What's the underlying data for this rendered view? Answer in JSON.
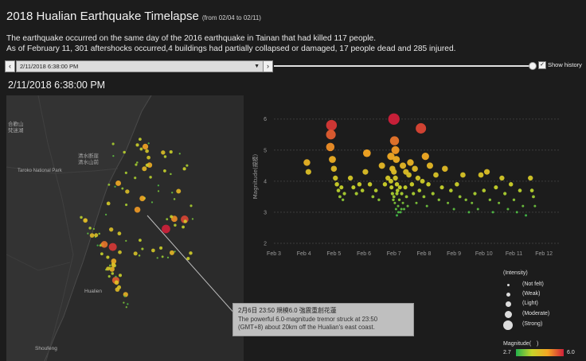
{
  "header": {
    "title": "2018 Hualian Earthquake Timelapse",
    "range": "(from 02/04 to 02/11)",
    "desc_line1": "The earthquake occurred on the same day of the 2016 earthquake in Tainan that had killed 117 people.",
    "desc_line2": "As of February 11, 301 aftershocks occurred,4 buildings had partially collapsed or damaged, 17 people dead and 285 injured."
  },
  "controls": {
    "prev_icon": "chevron-left-icon",
    "next_icon": "chevron-right-icon",
    "selected_date": "2/11/2018 6:38:00 PM",
    "show_history_label": "Show history",
    "show_history_checked": true,
    "progress": 1.0
  },
  "current_date": "2/11/2018 6:38:00 PM",
  "map": {
    "labels": {
      "hehuan": "合歡山",
      "hehuan_sub": "梵迷湖",
      "qingshui": "清水断崖",
      "qingshui_sub": "清水山前",
      "taroko": "Taroko National Park",
      "hualien": "Hualien",
      "shoufeng": "Shoufeng"
    }
  },
  "tooltip": {
    "head": "2月6日 23:50 規模6.0 強震重創花蓮",
    "line1": "The powerful 6.0-magnitude tremor struck at 23:50",
    "line2": "(GMT+8) about 20km off the Hualian's east coast."
  },
  "legend": {
    "title": "(Intensity)",
    "items": [
      "(Not felt)",
      "(Weak)",
      "(Light)",
      "(Moderate)",
      "(Strong)"
    ],
    "colorbar_title": "Magnitude(　)",
    "min_label": "2.7",
    "max_label": "6.0"
  },
  "chart_data": {
    "type": "scatter",
    "ylabel": "Magnitude(規模)",
    "ylim": [
      2,
      6.3
    ],
    "xlim": [
      3.0,
      12.5
    ],
    "x_ticks": [
      "Feb 3",
      "Feb 4",
      "Feb 5",
      "Feb 6",
      "Feb 7",
      "Feb 8",
      "Feb 9",
      "Feb 10",
      "Feb 11",
      "Feb 12"
    ],
    "y_ticks": [
      2,
      3,
      4,
      5,
      6
    ],
    "grid": true,
    "color_scale": [
      "#22b14c",
      "#c8d42a",
      "#f5a623",
      "#d0203a"
    ],
    "color_range": [
      2.7,
      6.0
    ],
    "points": [
      [
        4.1,
        4.6
      ],
      [
        4.15,
        4.3
      ],
      [
        4.92,
        5.8
      ],
      [
        4.9,
        5.5
      ],
      [
        4.88,
        5.1
      ],
      [
        4.95,
        4.7
      ],
      [
        5.0,
        4.4
      ],
      [
        5.05,
        4.1
      ],
      [
        5.1,
        3.9
      ],
      [
        5.15,
        3.7
      ],
      [
        5.2,
        3.5
      ],
      [
        5.25,
        3.8
      ],
      [
        5.3,
        3.4
      ],
      [
        5.35,
        3.6
      ],
      [
        5.55,
        4.1
      ],
      [
        5.65,
        3.8
      ],
      [
        5.75,
        3.6
      ],
      [
        5.85,
        3.9
      ],
      [
        5.95,
        3.7
      ],
      [
        6.05,
        4.3
      ],
      [
        6.1,
        4.9
      ],
      [
        6.2,
        3.9
      ],
      [
        6.3,
        3.5
      ],
      [
        6.4,
        3.7
      ],
      [
        6.5,
        3.4
      ],
      [
        6.6,
        4.5
      ],
      [
        6.7,
        3.9
      ],
      [
        6.8,
        4.1
      ],
      [
        6.9,
        4.0
      ],
      [
        6.92,
        3.8
      ],
      [
        6.95,
        3.6
      ],
      [
        6.98,
        3.4
      ],
      [
        7.0,
        6.0
      ],
      [
        7.02,
        5.3
      ],
      [
        7.05,
        5.0
      ],
      [
        7.08,
        4.7
      ],
      [
        7.0,
        4.3
      ],
      [
        7.05,
        4.1
      ],
      [
        7.1,
        3.9
      ],
      [
        7.12,
        3.7
      ],
      [
        7.0,
        3.5
      ],
      [
        7.03,
        3.3
      ],
      [
        7.07,
        3.1
      ],
      [
        7.1,
        2.9
      ],
      [
        7.14,
        3.2
      ],
      [
        7.18,
        3.4
      ],
      [
        7.22,
        3.0
      ],
      [
        7.26,
        3.6
      ],
      [
        7.3,
        3.3
      ],
      [
        7.34,
        3.1
      ],
      [
        7.38,
        3.8
      ],
      [
        7.42,
        3.5
      ],
      [
        7.46,
        3.2
      ],
      [
        7.5,
        4.2
      ],
      [
        7.55,
        4.6
      ],
      [
        7.6,
        3.9
      ],
      [
        7.65,
        3.6
      ],
      [
        7.7,
        4.4
      ],
      [
        7.75,
        3.3
      ],
      [
        7.8,
        4.1
      ],
      [
        7.85,
        3.7
      ],
      [
        7.9,
        5.7
      ],
      [
        7.95,
        4.0
      ],
      [
        8.0,
        3.5
      ],
      [
        8.05,
        4.8
      ],
      [
        8.1,
        3.2
      ],
      [
        8.15,
        3.9
      ],
      [
        8.2,
        4.5
      ],
      [
        8.3,
        3.6
      ],
      [
        8.4,
        4.2
      ],
      [
        8.5,
        3.4
      ],
      [
        8.6,
        3.8
      ],
      [
        8.7,
        4.4
      ],
      [
        8.8,
        3.3
      ],
      [
        8.9,
        3.7
      ],
      [
        9.0,
        3.1
      ],
      [
        9.1,
        3.9
      ],
      [
        9.2,
        3.5
      ],
      [
        9.3,
        4.2
      ],
      [
        9.4,
        3.4
      ],
      [
        9.5,
        3.0
      ],
      [
        9.6,
        3.3
      ],
      [
        9.7,
        3.6
      ],
      [
        9.8,
        3.1
      ],
      [
        9.9,
        4.2
      ],
      [
        10.0,
        3.7
      ],
      [
        10.1,
        4.3
      ],
      [
        10.2,
        3.4
      ],
      [
        10.3,
        3.0
      ],
      [
        10.4,
        3.8
      ],
      [
        10.5,
        3.3
      ],
      [
        10.6,
        4.1
      ],
      [
        10.7,
        3.6
      ],
      [
        10.8,
        3.1
      ],
      [
        10.9,
        3.9
      ],
      [
        11.0,
        3.4
      ],
      [
        11.1,
        3.0
      ],
      [
        11.2,
        3.7
      ],
      [
        11.3,
        3.2
      ],
      [
        11.4,
        2.9
      ],
      [
        11.55,
        4.1
      ],
      [
        11.6,
        3.7
      ],
      [
        11.65,
        3.5
      ],
      [
        11.7,
        3.2
      ],
      [
        7.1,
        3.6
      ],
      [
        7.15,
        3.0
      ],
      [
        7.2,
        3.8
      ],
      [
        7.25,
        3.1
      ],
      [
        6.95,
        4.4
      ],
      [
        6.9,
        4.8
      ],
      [
        7.3,
        4.5
      ],
      [
        7.4,
        4.3
      ]
    ]
  }
}
